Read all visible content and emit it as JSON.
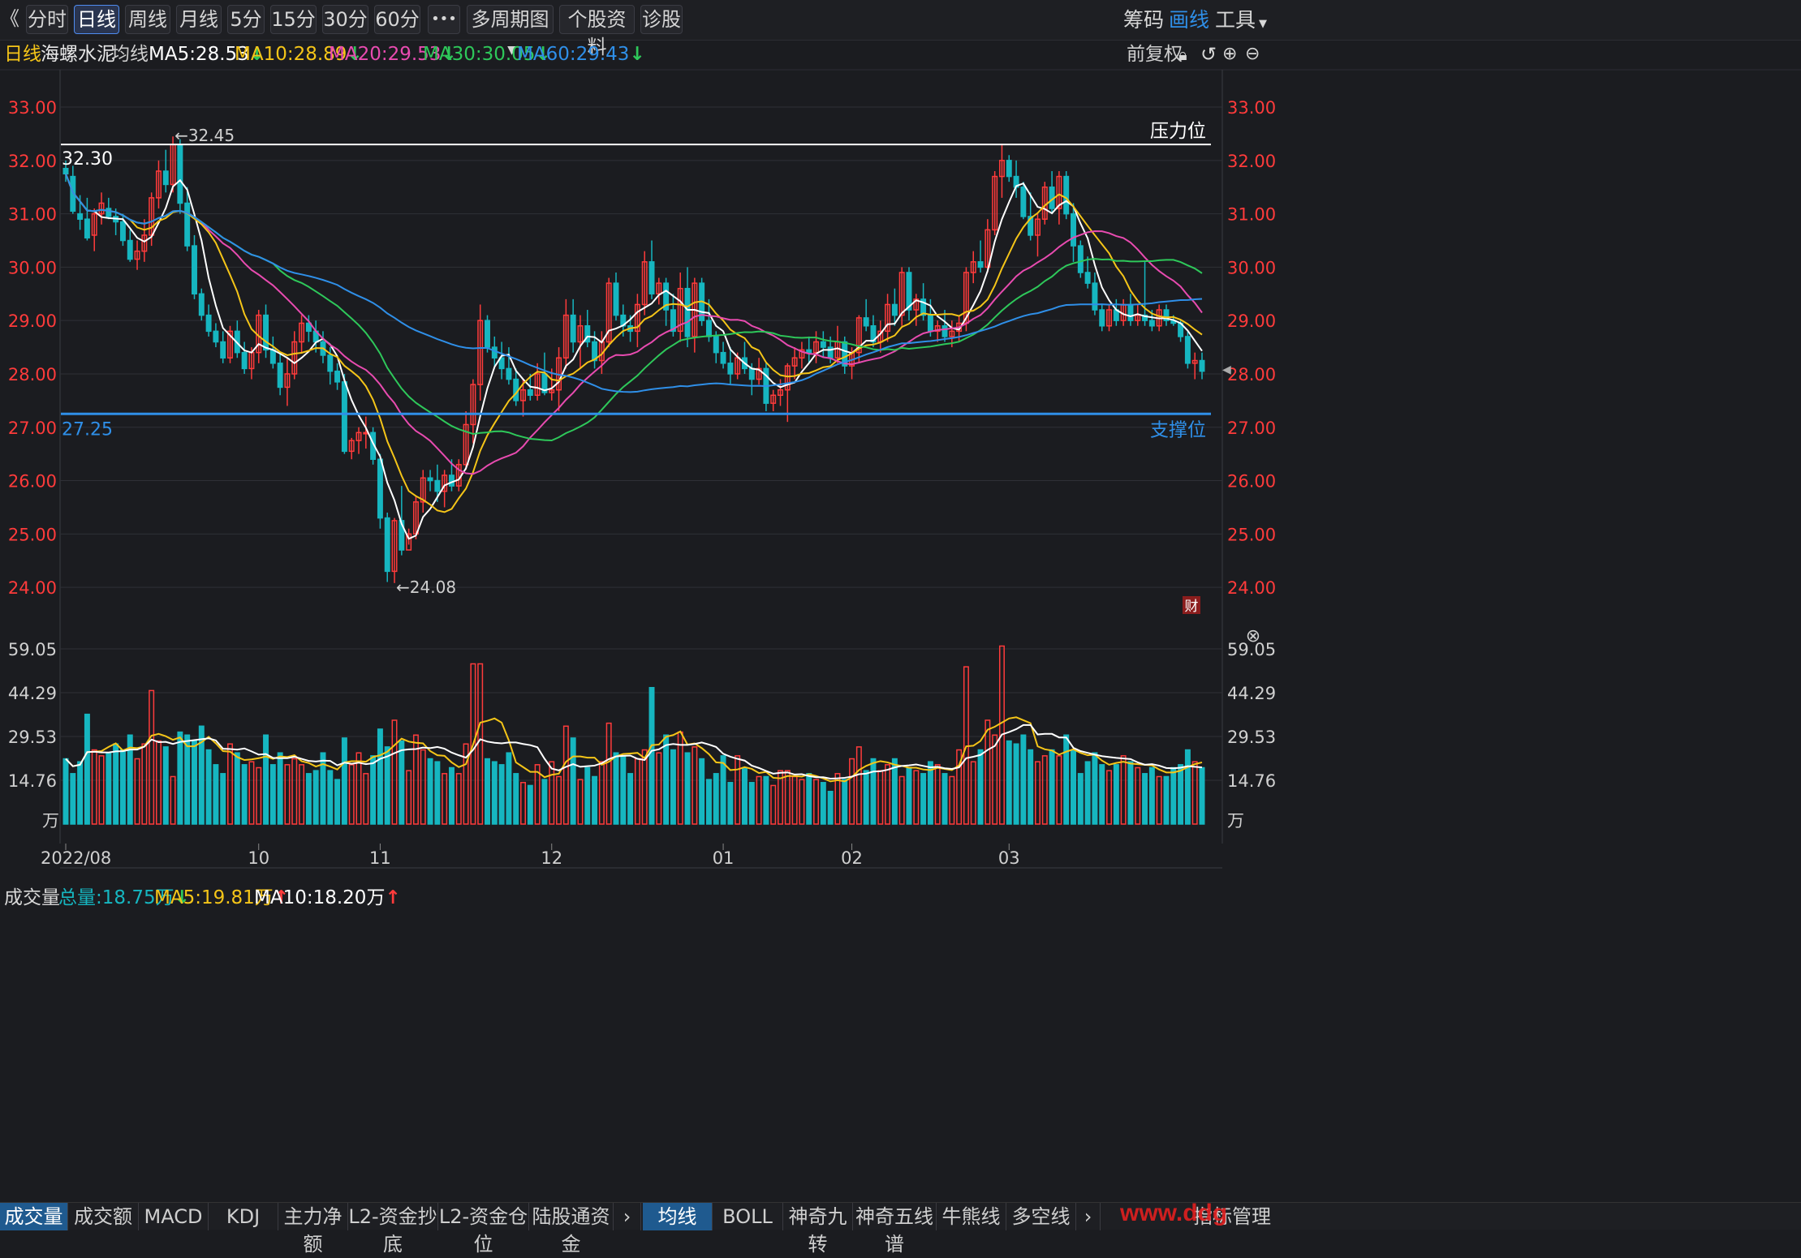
{
  "toolbar": {
    "back": "《",
    "tabs": [
      "分时",
      "日线",
      "周线",
      "月线",
      "5分",
      "15分",
      "30分",
      "60分"
    ],
    "more": "•••",
    "multi": "多周期图",
    "info": "个股资料",
    "diag": "诊股",
    "right": [
      "筹码",
      "画线",
      "工具"
    ]
  },
  "ma_bar": {
    "period": "日线",
    "name": "海螺水泥",
    "type": "均线",
    "ma5": "MA5:28.53",
    "ma10": "MA10:28.89",
    "ma20": "MA20:29.53",
    "ma30": "MA30:30.05",
    "ma60": "MA60:29.43",
    "restore": "前复权"
  },
  "vol_bar": {
    "title": "成交量",
    "total": "总量:18.75万",
    "ma5": "MA5:19.81万",
    "ma10": "MA10:18.20万"
  },
  "annotations": {
    "high": "←32.45",
    "low": "←24.08",
    "resistance_value": "32.30",
    "resistance_label": "压力位",
    "support_value": "27.25",
    "support_label": "支撑位",
    "cai": "财"
  },
  "bottom_tabs": {
    "left": [
      "成交量",
      "成交额",
      "MACD",
      "KDJ",
      "主力净额",
      "L2-资金抄底",
      "L2-资金仓位",
      "陆股通资金"
    ],
    "right": [
      "均线",
      "BOLL",
      "神奇九转",
      "神奇五线谱",
      "牛熊线",
      "多空线",
      "指标管理"
    ],
    "watermark": "www.ddg"
  },
  "colors": {
    "up": "#ff3b3b",
    "down": "#16b6c0",
    "ma5": "#ffffff",
    "ma10": "#f5c518",
    "ma20": "#e84bb0",
    "ma30": "#2ec85a",
    "ma60": "#2f8fe8",
    "support": "#2f8fe8",
    "resistance": "#ffffff"
  },
  "chart_data": {
    "type": "candlestick",
    "price_axis": {
      "ticks": [
        "33.00",
        "32.00",
        "31.00",
        "30.00",
        "29.00",
        "28.00",
        "27.00",
        "26.00",
        "25.00",
        "24.00"
      ],
      "ylim": [
        23.5,
        33.7
      ]
    },
    "volume_axis": {
      "ticks": [
        "59.05",
        "44.29",
        "29.53",
        "14.76"
      ],
      "unit": "万",
      "ylim": [
        0,
        59.05
      ]
    },
    "x_ticks": [
      {
        "label": "2022/08",
        "i": 0
      },
      {
        "label": "10",
        "i": 27
      },
      {
        "label": "11",
        "i": 44
      },
      {
        "label": "12",
        "i": 68
      },
      {
        "label": "01",
        "i": 92
      },
      {
        "label": "02",
        "i": 110
      },
      {
        "label": "03",
        "i": 132
      }
    ],
    "support_level": 27.25,
    "resistance_level": 32.3,
    "high": 32.45,
    "low": 24.08,
    "ohlcv": [
      [
        31.85,
        32.0,
        31.6,
        31.75,
        22
      ],
      [
        31.7,
        31.9,
        31.0,
        31.05,
        17
      ],
      [
        31.0,
        31.35,
        30.7,
        30.9,
        21
      ],
      [
        30.9,
        31.3,
        30.5,
        30.55,
        37
      ],
      [
        30.6,
        31.1,
        30.3,
        31.0,
        25
      ],
      [
        31.0,
        31.4,
        30.8,
        31.2,
        23
      ],
      [
        31.1,
        31.3,
        30.9,
        30.95,
        24
      ],
      [
        30.95,
        31.1,
        30.6,
        30.85,
        27
      ],
      [
        30.85,
        31.0,
        30.4,
        30.5,
        25
      ],
      [
        30.5,
        30.7,
        30.1,
        30.15,
        30
      ],
      [
        30.15,
        30.5,
        29.95,
        30.3,
        22
      ],
      [
        30.3,
        30.9,
        30.1,
        30.6,
        27
      ],
      [
        30.6,
        31.4,
        30.4,
        31.3,
        45
      ],
      [
        31.3,
        32.0,
        31.1,
        31.8,
        28
      ],
      [
        31.8,
        32.2,
        31.4,
        31.55,
        26
      ],
      [
        31.55,
        32.45,
        31.4,
        32.3,
        16
      ],
      [
        32.3,
        32.4,
        31.0,
        31.2,
        31
      ],
      [
        31.2,
        31.5,
        30.3,
        30.4,
        30
      ],
      [
        30.4,
        30.6,
        29.4,
        29.5,
        28
      ],
      [
        29.5,
        29.6,
        29.0,
        29.1,
        33
      ],
      [
        29.1,
        29.3,
        28.7,
        28.8,
        25
      ],
      [
        28.8,
        28.95,
        28.5,
        28.6,
        20
      ],
      [
        28.6,
        28.8,
        28.2,
        28.3,
        17
      ],
      [
        28.3,
        28.9,
        28.2,
        28.8,
        27
      ],
      [
        28.8,
        29.0,
        28.3,
        28.4,
        24
      ],
      [
        28.4,
        28.6,
        28.0,
        28.1,
        20
      ],
      [
        28.1,
        28.5,
        27.9,
        28.4,
        21
      ],
      [
        28.4,
        29.2,
        28.2,
        29.1,
        19
      ],
      [
        29.1,
        29.3,
        28.3,
        28.45,
        30
      ],
      [
        28.45,
        28.7,
        28.1,
        28.2,
        20
      ],
      [
        28.2,
        28.4,
        27.6,
        27.75,
        24
      ],
      [
        27.75,
        28.3,
        27.4,
        28.0,
        20
      ],
      [
        28.0,
        28.8,
        27.9,
        28.6,
        22
      ],
      [
        28.6,
        29.1,
        28.4,
        28.95,
        20
      ],
      [
        28.95,
        29.1,
        28.6,
        28.8,
        17
      ],
      [
        28.8,
        29.0,
        28.4,
        28.6,
        18
      ],
      [
        28.6,
        28.8,
        28.2,
        28.35,
        24
      ],
      [
        28.35,
        28.5,
        27.8,
        28.05,
        18
      ],
      [
        28.05,
        28.2,
        27.7,
        27.85,
        15
      ],
      [
        27.85,
        28.0,
        26.5,
        26.55,
        29
      ],
      [
        26.55,
        26.8,
        26.4,
        26.75,
        20
      ],
      [
        26.75,
        27.0,
        26.5,
        26.9,
        24
      ],
      [
        26.9,
        27.2,
        26.6,
        26.9,
        17
      ],
      [
        26.9,
        27.0,
        26.3,
        26.4,
        23
      ],
      [
        26.4,
        26.5,
        25.1,
        25.3,
        32
      ],
      [
        25.3,
        25.4,
        24.1,
        24.3,
        26
      ],
      [
        24.3,
        25.3,
        24.08,
        25.25,
        35
      ],
      [
        25.25,
        25.9,
        24.6,
        24.7,
        28
      ],
      [
        24.7,
        25.1,
        24.8,
        25.0,
        18
      ],
      [
        25.0,
        25.7,
        24.9,
        25.6,
        30
      ],
      [
        25.6,
        26.2,
        25.4,
        26.05,
        25
      ],
      [
        26.05,
        26.2,
        25.8,
        26.0,
        22
      ],
      [
        26.0,
        26.3,
        25.6,
        25.8,
        21
      ],
      [
        25.8,
        26.2,
        25.5,
        26.1,
        17
      ],
      [
        26.1,
        26.4,
        25.8,
        25.9,
        19
      ],
      [
        25.9,
        26.4,
        25.8,
        26.3,
        17
      ],
      [
        26.3,
        27.3,
        26.2,
        27.05,
        27
      ],
      [
        27.05,
        27.9,
        26.7,
        27.8,
        54
      ],
      [
        27.8,
        29.3,
        27.5,
        29.0,
        54
      ],
      [
        29.0,
        29.1,
        28.4,
        28.5,
        22
      ],
      [
        28.5,
        28.7,
        28.1,
        28.3,
        21
      ],
      [
        28.3,
        28.6,
        27.9,
        28.1,
        20
      ],
      [
        28.1,
        28.5,
        27.8,
        27.9,
        24
      ],
      [
        27.9,
        28.1,
        27.4,
        27.5,
        17
      ],
      [
        27.5,
        27.9,
        27.2,
        27.7,
        14
      ],
      [
        27.7,
        28.0,
        27.5,
        27.6,
        13
      ],
      [
        27.6,
        28.2,
        27.5,
        28.0,
        20
      ],
      [
        28.0,
        28.4,
        27.6,
        27.65,
        15
      ],
      [
        27.65,
        28.1,
        27.5,
        27.7,
        21
      ],
      [
        27.7,
        28.5,
        27.3,
        28.3,
        16
      ],
      [
        28.3,
        29.4,
        28.1,
        29.1,
        33
      ],
      [
        29.1,
        29.4,
        28.4,
        28.6,
        29
      ],
      [
        28.6,
        29.1,
        28.1,
        28.9,
        15
      ],
      [
        28.9,
        29.2,
        28.5,
        28.6,
        19
      ],
      [
        28.6,
        28.8,
        28.1,
        28.25,
        16
      ],
      [
        28.25,
        28.8,
        28.0,
        28.6,
        21
      ],
      [
        28.6,
        29.8,
        28.5,
        29.7,
        34
      ],
      [
        29.7,
        29.9,
        29.0,
        29.1,
        24
      ],
      [
        29.1,
        29.3,
        28.7,
        28.9,
        23
      ],
      [
        28.9,
        29.1,
        28.6,
        28.8,
        17
      ],
      [
        28.8,
        29.5,
        28.5,
        29.3,
        22
      ],
      [
        29.3,
        30.3,
        29.1,
        30.1,
        25
      ],
      [
        30.1,
        30.5,
        29.4,
        29.5,
        46
      ],
      [
        29.5,
        29.8,
        29.3,
        29.7,
        24
      ],
      [
        29.7,
        29.8,
        28.9,
        29.2,
        30
      ],
      [
        29.2,
        29.5,
        28.7,
        28.8,
        25
      ],
      [
        28.8,
        29.9,
        28.6,
        29.6,
        31
      ],
      [
        29.6,
        30.0,
        28.5,
        28.7,
        24
      ],
      [
        28.7,
        29.8,
        28.4,
        29.7,
        26
      ],
      [
        29.7,
        29.8,
        28.9,
        29.0,
        22
      ],
      [
        29.0,
        29.4,
        28.6,
        28.7,
        15
      ],
      [
        28.7,
        28.8,
        28.2,
        28.4,
        17
      ],
      [
        28.4,
        28.6,
        28.1,
        28.2,
        23
      ],
      [
        28.2,
        28.5,
        27.8,
        28.0,
        14
      ],
      [
        28.0,
        28.4,
        27.9,
        28.3,
        23
      ],
      [
        28.3,
        28.6,
        28.0,
        28.1,
        19
      ],
      [
        28.1,
        28.2,
        27.6,
        27.9,
        14
      ],
      [
        27.9,
        28.3,
        27.8,
        28.1,
        16
      ],
      [
        28.1,
        28.2,
        27.3,
        27.45,
        16
      ],
      [
        27.45,
        27.7,
        27.3,
        27.6,
        13
      ],
      [
        27.6,
        27.9,
        27.4,
        27.7,
        18
      ],
      [
        27.7,
        28.2,
        27.1,
        28.15,
        18
      ],
      [
        28.15,
        28.5,
        27.9,
        28.3,
        16
      ],
      [
        28.3,
        28.6,
        28.1,
        28.45,
        15
      ],
      [
        28.45,
        28.7,
        28.2,
        28.4,
        17
      ],
      [
        28.4,
        28.8,
        28.2,
        28.6,
        15
      ],
      [
        28.6,
        28.8,
        28.3,
        28.5,
        14
      ],
      [
        28.5,
        28.7,
        28.2,
        28.3,
        11
      ],
      [
        28.3,
        28.9,
        28.2,
        28.6,
        17
      ],
      [
        28.6,
        28.7,
        28.0,
        28.15,
        15
      ],
      [
        28.15,
        28.5,
        27.9,
        28.4,
        22
      ],
      [
        28.4,
        29.1,
        28.2,
        29.05,
        26
      ],
      [
        29.05,
        29.4,
        28.8,
        28.9,
        18
      ],
      [
        28.9,
        29.1,
        28.5,
        28.6,
        22
      ],
      [
        28.6,
        29.0,
        28.4,
        28.8,
        18
      ],
      [
        28.8,
        29.5,
        28.6,
        29.3,
        20
      ],
      [
        29.3,
        29.6,
        28.9,
        29.1,
        22
      ],
      [
        29.1,
        30.0,
        28.9,
        29.9,
        16
      ],
      [
        29.9,
        30.0,
        29.0,
        29.2,
        19
      ],
      [
        29.2,
        29.5,
        28.9,
        29.4,
        18
      ],
      [
        29.4,
        29.7,
        29.0,
        29.1,
        17
      ],
      [
        29.1,
        29.4,
        28.7,
        28.8,
        21
      ],
      [
        28.8,
        29.0,
        28.6,
        28.9,
        20
      ],
      [
        28.9,
        29.2,
        28.6,
        28.7,
        17
      ],
      [
        28.7,
        29.0,
        28.5,
        28.8,
        16
      ],
      [
        28.8,
        29.1,
        28.6,
        28.95,
        25
      ],
      [
        28.95,
        30.0,
        28.8,
        29.9,
        53
      ],
      [
        29.9,
        30.3,
        29.7,
        30.1,
        21
      ],
      [
        30.1,
        30.5,
        29.9,
        30.0,
        25
      ],
      [
        30.0,
        30.9,
        29.9,
        30.7,
        35
      ],
      [
        30.7,
        31.8,
        30.6,
        31.7,
        30
      ],
      [
        31.7,
        32.3,
        31.3,
        32.0,
        60
      ],
      [
        32.0,
        32.1,
        31.6,
        31.7,
        28
      ],
      [
        31.7,
        32.0,
        31.3,
        31.5,
        27
      ],
      [
        31.5,
        31.6,
        30.9,
        30.95,
        30
      ],
      [
        30.95,
        31.4,
        30.5,
        30.6,
        25
      ],
      [
        30.6,
        31.0,
        30.2,
        30.9,
        21
      ],
      [
        30.9,
        31.6,
        30.8,
        31.5,
        23
      ],
      [
        31.5,
        31.8,
        31.0,
        31.1,
        25
      ],
      [
        31.1,
        31.8,
        30.8,
        31.7,
        23
      ],
      [
        31.7,
        31.8,
        30.9,
        31.0,
        30
      ],
      [
        31.0,
        31.2,
        30.1,
        30.4,
        25
      ],
      [
        30.4,
        30.5,
        29.8,
        29.9,
        17
      ],
      [
        29.9,
        30.2,
        29.6,
        29.7,
        21
      ],
      [
        29.7,
        29.9,
        29.1,
        29.2,
        24
      ],
      [
        29.2,
        29.3,
        28.8,
        28.9,
        20
      ],
      [
        28.9,
        29.3,
        28.8,
        29.2,
        18
      ],
      [
        29.2,
        29.4,
        28.9,
        29.0,
        20
      ],
      [
        29.0,
        29.4,
        28.9,
        29.3,
        23
      ],
      [
        29.3,
        29.5,
        28.9,
        29.0,
        21
      ],
      [
        29.0,
        29.3,
        28.9,
        29.1,
        19
      ],
      [
        29.1,
        30.1,
        28.9,
        29.0,
        17
      ],
      [
        29.0,
        29.2,
        28.8,
        28.9,
        19
      ],
      [
        28.9,
        29.3,
        28.8,
        29.2,
        16
      ],
      [
        29.2,
        29.3,
        28.9,
        29.0,
        16
      ],
      [
        29.0,
        29.1,
        28.9,
        28.95,
        19
      ],
      [
        28.95,
        29.0,
        28.6,
        28.7,
        20
      ],
      [
        28.7,
        28.8,
        28.1,
        28.2,
        25
      ],
      [
        28.2,
        28.4,
        27.9,
        28.25,
        21
      ],
      [
        28.25,
        28.4,
        27.9,
        28.05,
        19
      ]
    ]
  }
}
